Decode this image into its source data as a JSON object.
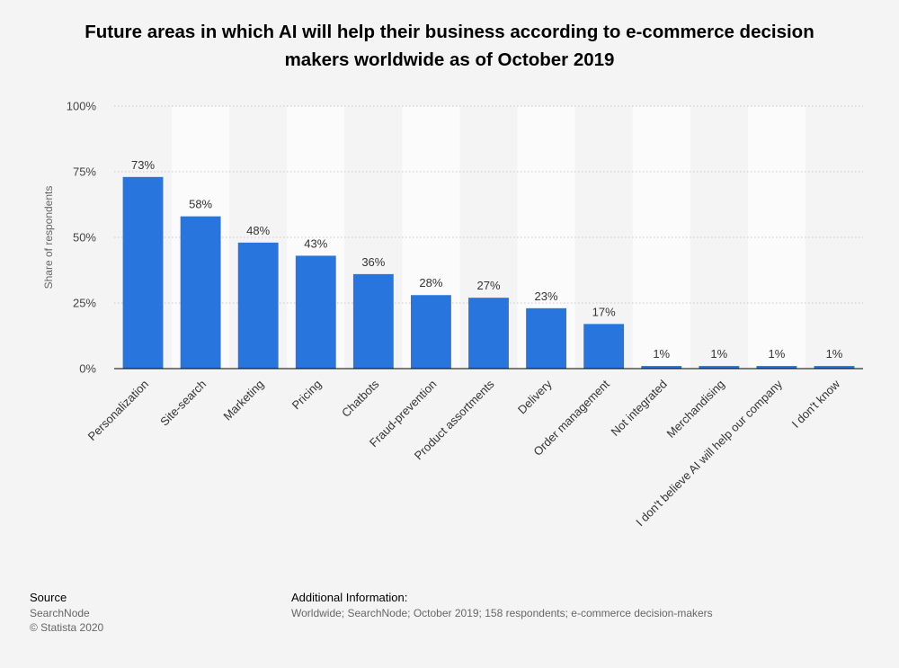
{
  "chart_data": {
    "type": "bar",
    "title": "Future areas in which AI will help their business according to e-commerce decision makers worldwide as of October 2019",
    "xlabel": "",
    "ylabel": "Share of respondents",
    "categories": [
      "Personalization",
      "Site-search",
      "Marketing",
      "Pricing",
      "Chatbots",
      "Fraud-prevention",
      "Product assortments",
      "Delivery",
      "Order management",
      "Not integrated",
      "Merchandising",
      "I don't believe AI will help our company",
      "I don't know"
    ],
    "values": [
      73,
      58,
      48,
      43,
      36,
      28,
      27,
      23,
      17,
      1,
      1,
      1,
      1
    ],
    "value_labels": [
      "73%",
      "58%",
      "48%",
      "43%",
      "36%",
      "28%",
      "27%",
      "23%",
      "17%",
      "1%",
      "1%",
      "1%",
      "1%"
    ],
    "ylim": [
      0,
      100
    ],
    "yticks": [
      0,
      25,
      50,
      75,
      100
    ],
    "ytick_labels": [
      "0%",
      "25%",
      "50%",
      "75%",
      "100%"
    ],
    "grid": true,
    "legend": "none",
    "colors": {
      "bar": "#2876dd",
      "band": "#fbfbfb",
      "grid": "#c8c8c8"
    }
  },
  "footer": {
    "source_heading": "Source",
    "source_name": "SearchNode",
    "copyright": "© Statista 2020",
    "info_heading": "Additional Information:",
    "info_text": "Worldwide; SearchNode; October 2019; 158 respondents; e-commerce decision-makers"
  }
}
